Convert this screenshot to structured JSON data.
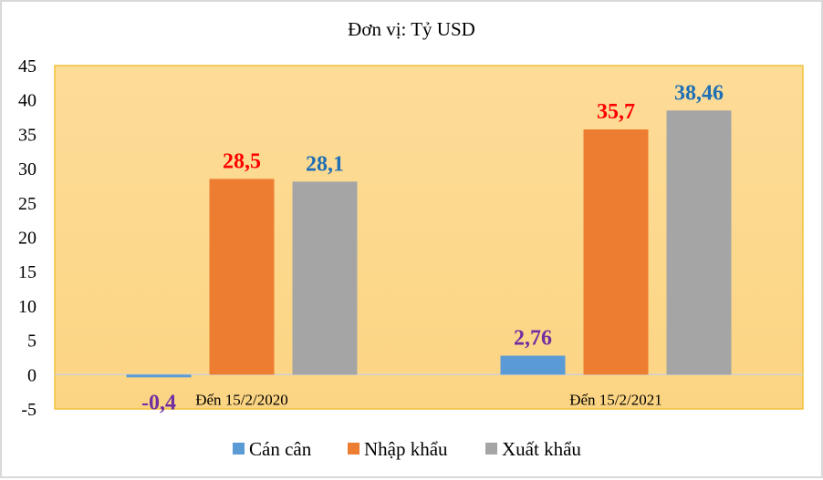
{
  "chart_data": {
    "type": "bar",
    "title": "Đơn vị: Tỷ USD",
    "categories": [
      "Đến 15/2/2020",
      "Đến 15/2/2021"
    ],
    "series": [
      {
        "name": "Cán cân",
        "values": [
          -0.4,
          2.76
        ],
        "labels": [
          "-0,4",
          "2,76"
        ],
        "color": "#5B9BD5",
        "label_color": "#7030A0"
      },
      {
        "name": "Nhập khẩu",
        "values": [
          28.5,
          35.7
        ],
        "labels": [
          "28,5",
          "35,7"
        ],
        "color": "#ED7D31",
        "label_color": "#FF0000"
      },
      {
        "name": "Xuất khẩu",
        "values": [
          28.1,
          38.46
        ],
        "labels": [
          "28,1",
          "38,46"
        ],
        "color": "#A5A5A5",
        "label_color": "#1F6FB5"
      }
    ],
    "ylim": [
      -5,
      45
    ],
    "yticks": [
      "-5",
      "0",
      "5",
      "10",
      "15",
      "20",
      "25",
      "30",
      "35",
      "40",
      "45"
    ],
    "grid": false,
    "legend": "bottom",
    "plot_background": "#FDDA8E",
    "plot_border": "#F2C23A"
  }
}
